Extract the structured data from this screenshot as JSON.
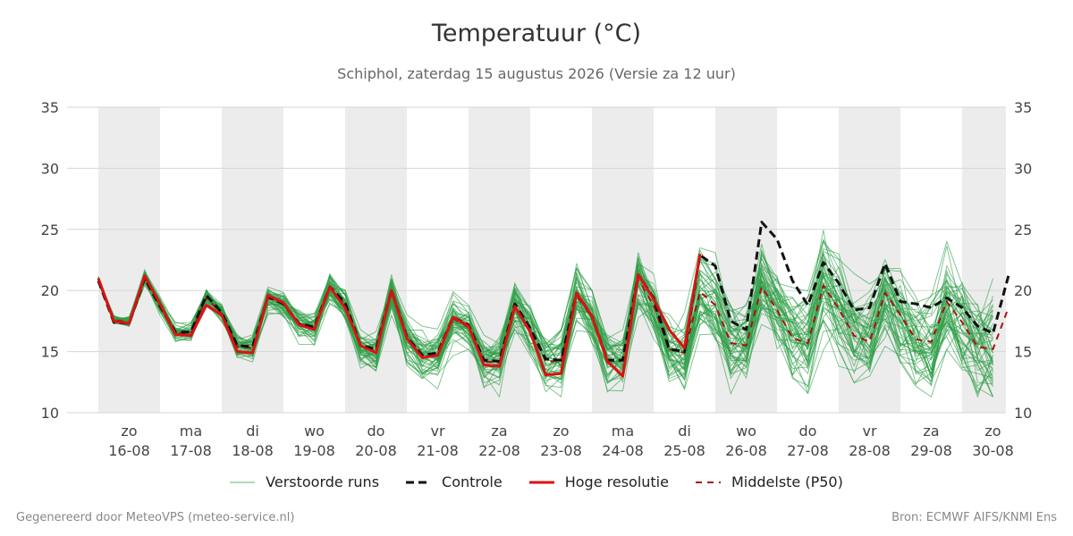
{
  "chart_data": {
    "type": "line",
    "title": "Temperatuur (°C)",
    "subtitle": "Schiphol, zaterdag 15 augustus 2026 (Versie za 12 uur)",
    "ylim": [
      10,
      35
    ],
    "yticks": [
      10,
      15,
      20,
      25,
      30,
      35
    ],
    "x_start": "2026-08-15",
    "x_end": "2026-08-30",
    "x_step_hours": 6,
    "x_ticks": [
      {
        "day": "zo",
        "date": "16-08"
      },
      {
        "day": "ma",
        "date": "17-08"
      },
      {
        "day": "di",
        "date": "18-08"
      },
      {
        "day": "wo",
        "date": "19-08"
      },
      {
        "day": "do",
        "date": "20-08"
      },
      {
        "day": "vr",
        "date": "21-08"
      },
      {
        "day": "za",
        "date": "22-08"
      },
      {
        "day": "zo",
        "date": "23-08"
      },
      {
        "day": "ma",
        "date": "24-08"
      },
      {
        "day": "di",
        "date": "25-08"
      },
      {
        "day": "wo",
        "date": "26-08"
      },
      {
        "day": "do",
        "date": "27-08"
      },
      {
        "day": "vr",
        "date": "28-08"
      },
      {
        "day": "za",
        "date": "29-08"
      },
      {
        "day": "zo",
        "date": "30-08"
      }
    ],
    "shaded_days": [
      "16-08",
      "18-08",
      "20-08",
      "22-08",
      "24-08",
      "26-08",
      "28-08",
      "30-08"
    ],
    "grid": true,
    "series": [
      {
        "name": "Hoge resolutie",
        "color": "#dd1111",
        "dash": "solid",
        "values": [
          21.0,
          17.5,
          17.3,
          21.2,
          18.9,
          16.4,
          16.3,
          18.8,
          18.0,
          15.0,
          14.9,
          19.6,
          19.0,
          17.2,
          16.8,
          20.3,
          18.6,
          15.5,
          14.9,
          20.0,
          16.1,
          14.5,
          14.7,
          17.8,
          17.1,
          13.9,
          13.8,
          18.7,
          16.6,
          13.1,
          13.2,
          19.8,
          17.9,
          14.2,
          13.0,
          21.3,
          19.3,
          16.8,
          15.3,
          23.0
        ]
      },
      {
        "name": "Controle",
        "color": "#111111",
        "dash": "dashed",
        "values": [
          20.8,
          17.4,
          17.3,
          21.0,
          18.7,
          16.6,
          16.6,
          19.6,
          18.2,
          15.5,
          15.4,
          19.5,
          18.9,
          17.3,
          17.0,
          20.3,
          19.0,
          15.5,
          15.2,
          20.0,
          16.2,
          14.7,
          14.9,
          17.8,
          17.2,
          14.3,
          14.2,
          18.9,
          16.9,
          14.4,
          14.3,
          19.8,
          17.9,
          14.3,
          14.3,
          21.3,
          19.4,
          15.2,
          15.0,
          22.9,
          22.0,
          17.5,
          16.8,
          25.6,
          24.2,
          20.8,
          18.8,
          22.3,
          20.6,
          18.4,
          18.6,
          22.2,
          19.1,
          18.9,
          18.6,
          19.4,
          18.6,
          17.1,
          16.5,
          21.2
        ]
      },
      {
        "name": "Middelste (P50)",
        "color": "#aa1111",
        "dash": "dashed",
        "values": [
          20.9,
          17.6,
          17.4,
          21.1,
          18.8,
          16.5,
          16.5,
          19.4,
          18.1,
          15.4,
          15.3,
          19.4,
          18.9,
          17.3,
          16.9,
          20.2,
          18.9,
          15.5,
          15.1,
          19.9,
          16.1,
          14.7,
          14.8,
          17.7,
          17.0,
          14.2,
          14.1,
          18.7,
          16.8,
          14.2,
          14.2,
          19.6,
          17.8,
          14.3,
          14.3,
          20.9,
          18.8,
          15.2,
          14.9,
          19.9,
          18.8,
          15.7,
          15.5,
          20.3,
          18.4,
          16.1,
          15.7,
          20.4,
          18.5,
          16.3,
          15.8,
          19.8,
          18.0,
          16.0,
          15.8,
          19.1,
          17.4,
          15.4,
          15.2,
          18.6
        ]
      }
    ],
    "ensemble": {
      "name": "Verstoorde runs",
      "color": "#2e9e47",
      "members": 50
    }
  },
  "legend": {
    "perturbed": "Verstoorde runs",
    "control": "Controle",
    "hires": "Hoge resolutie",
    "median": "Middelste (P50)"
  },
  "footer": {
    "left": "Gegenereerd door MeteoVPS (meteo-service.nl)",
    "right": "Bron: ECMWF AIFS/KNMI Ens"
  }
}
